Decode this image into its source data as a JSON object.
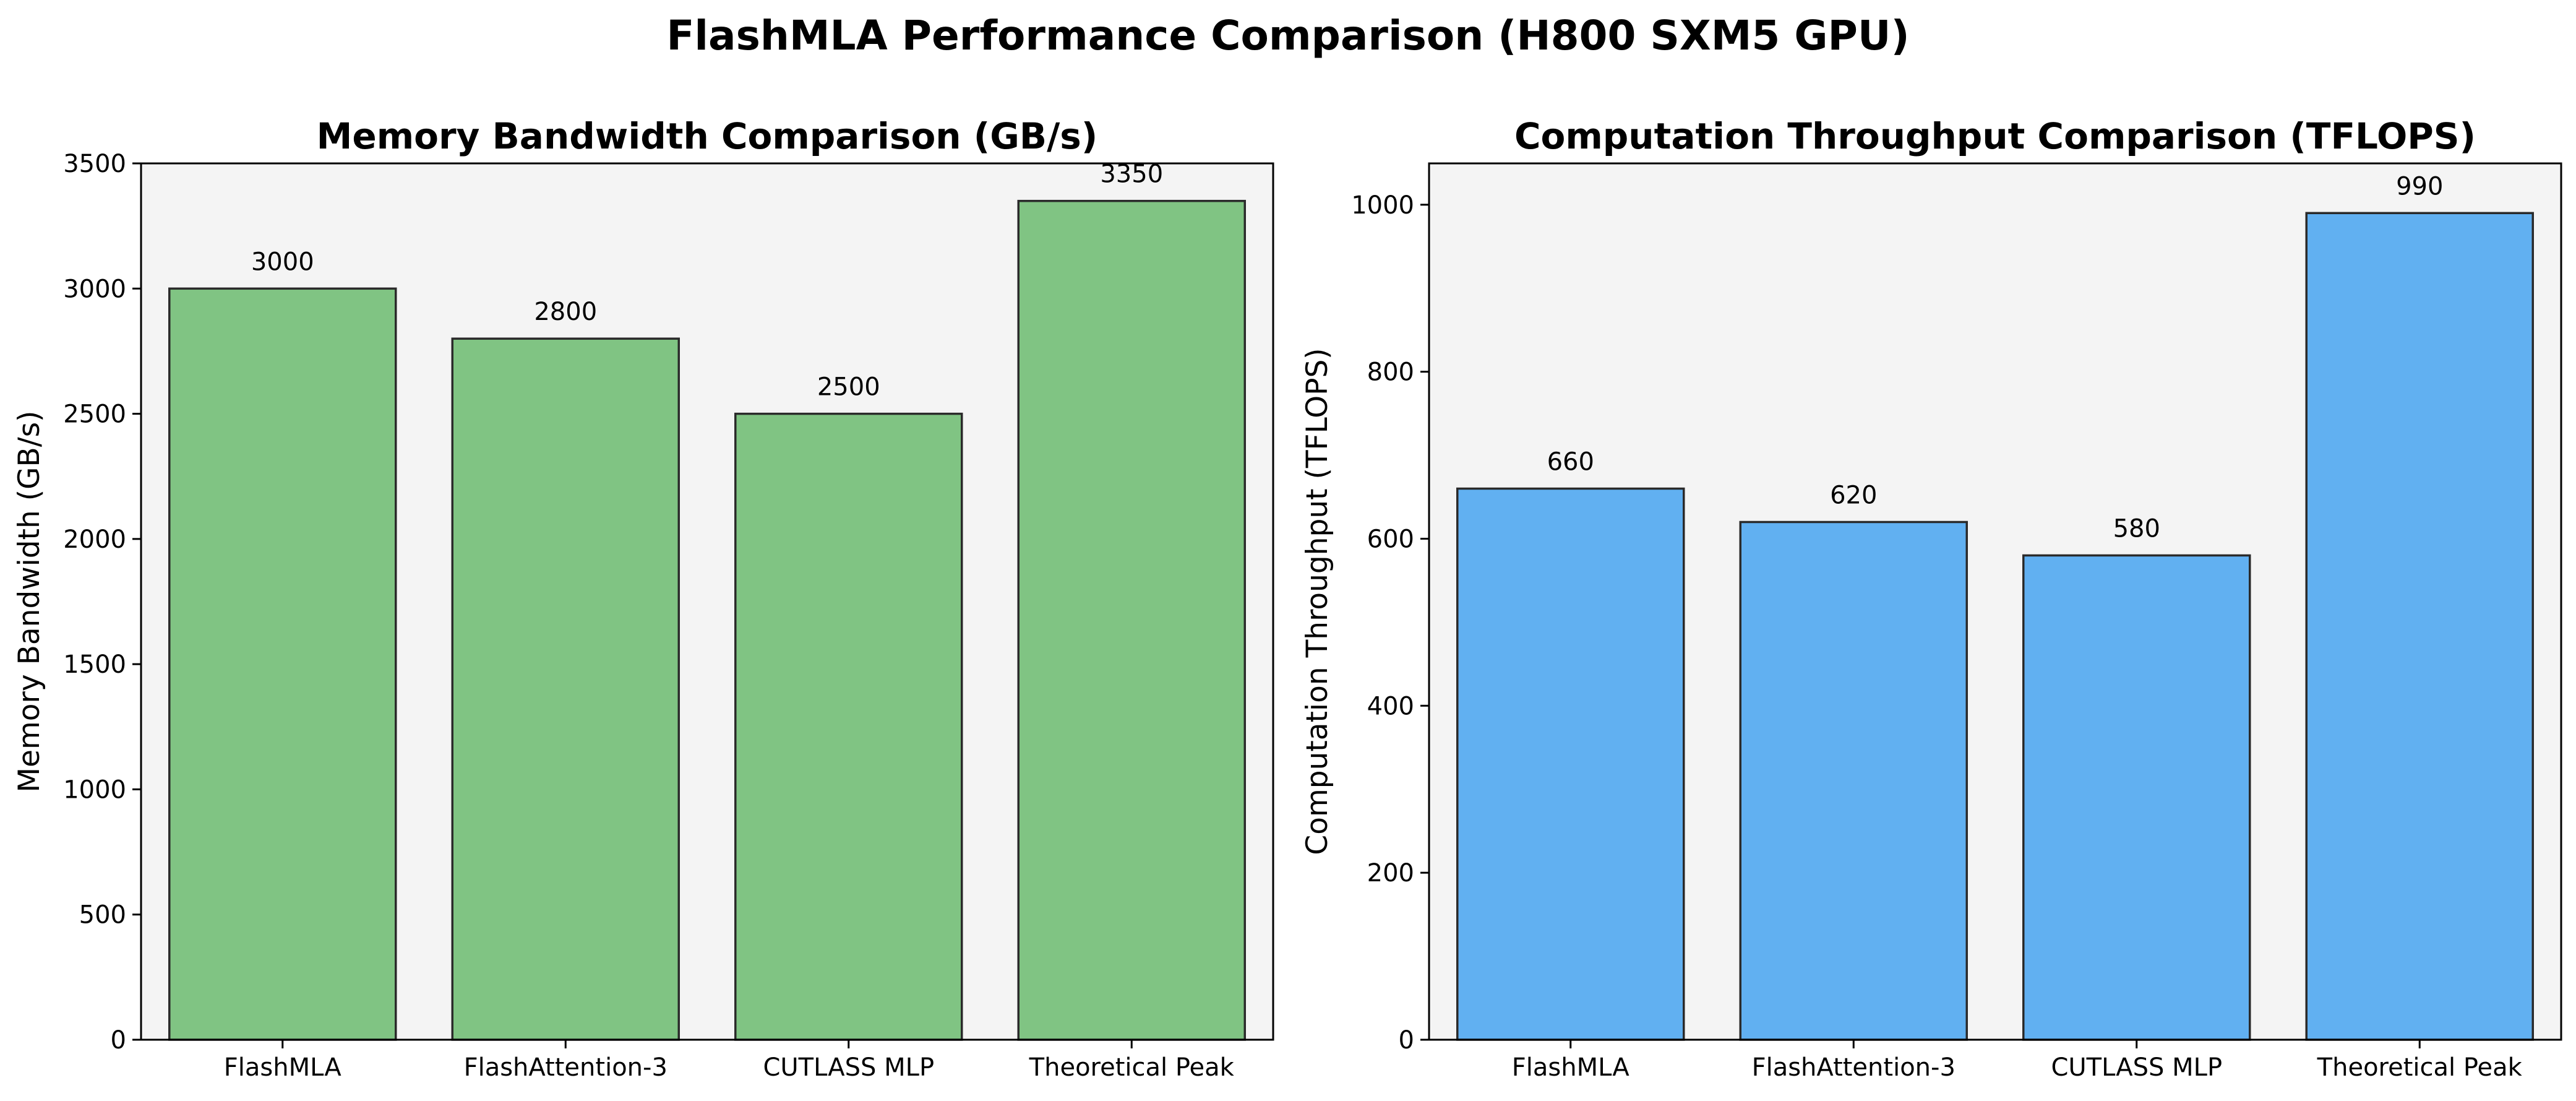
{
  "figure_title": "FlashMLA Performance Comparison (H800 SXM5 GPU)",
  "chart_data": [
    {
      "type": "bar",
      "title": "Memory Bandwidth Comparison (GB/s)",
      "xlabel": "",
      "ylabel": "Memory Bandwidth (GB/s)",
      "categories": [
        "FlashMLA",
        "FlashAttention-3",
        "CUTLASS MLP",
        "Theoretical Peak"
      ],
      "values": [
        3000,
        2800,
        2500,
        3350
      ],
      "data_labels": [
        "3000",
        "2800",
        "2500",
        "3350"
      ],
      "ylim": [
        0,
        3500
      ],
      "yticks": [
        0,
        500,
        1000,
        1500,
        2000,
        2500,
        3000,
        3500
      ],
      "color": "#80c483",
      "grid": false
    },
    {
      "type": "bar",
      "title": "Computation Throughput Comparison (TFLOPS)",
      "xlabel": "",
      "ylabel": "Computation Throughput (TFLOPS)",
      "categories": [
        "FlashMLA",
        "FlashAttention-3",
        "CUTLASS MLP",
        "Theoretical Peak"
      ],
      "values": [
        660,
        620,
        580,
        990
      ],
      "data_labels": [
        "660",
        "620",
        "580",
        "990"
      ],
      "ylim": [
        0,
        1049.5
      ],
      "yticks": [
        0,
        200,
        400,
        600,
        800,
        1000
      ],
      "color": "#61b0f1",
      "grid": false
    }
  ]
}
